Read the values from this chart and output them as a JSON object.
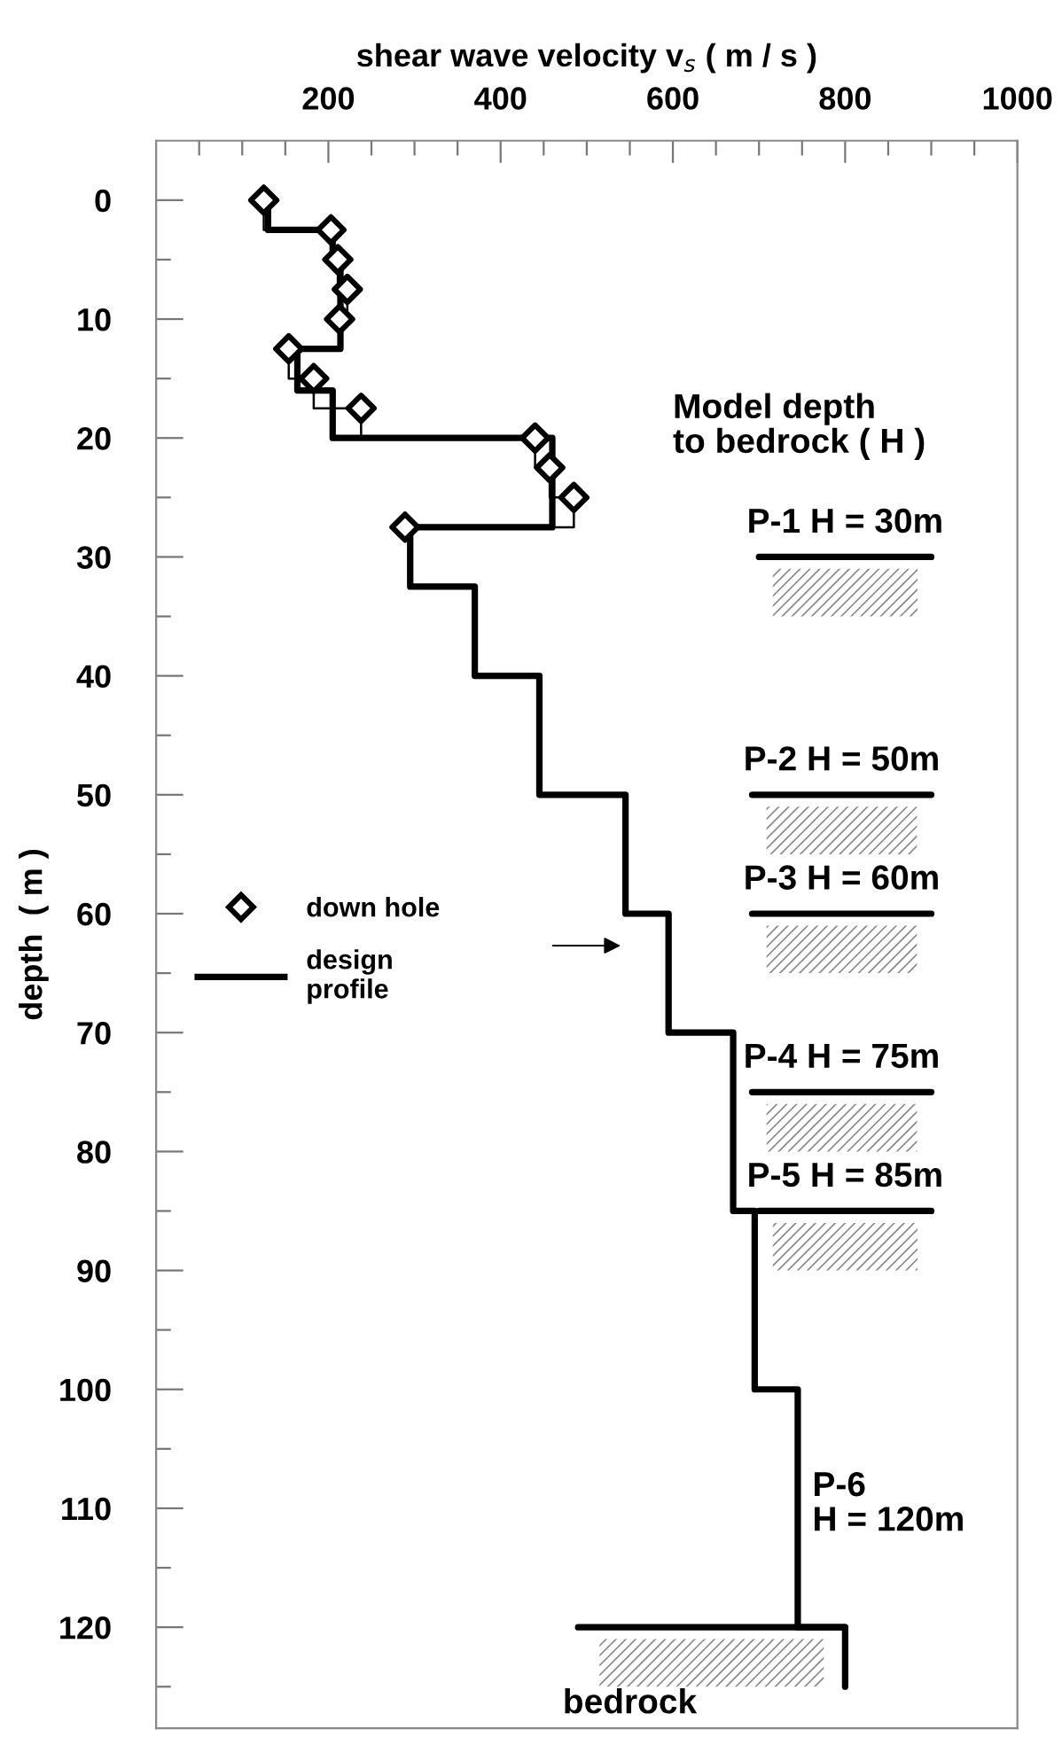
{
  "chart_data": {
    "type": "line",
    "xlabel": "shear wave velocity v$_{s}$ ( m / s )",
    "ylabel": "depth  ( m )",
    "xlim": [
      0,
      1000
    ],
    "xticks": [
      {
        "value": 50,
        "label": null
      },
      {
        "value": 100,
        "label": null
      },
      {
        "value": 150,
        "label": null
      },
      200,
      {
        "value": 250,
        "label": null
      },
      {
        "value": 300,
        "label": null
      },
      {
        "value": 350,
        "label": null
      },
      400,
      {
        "value": 450,
        "label": null
      },
      {
        "value": 500,
        "label": null
      },
      {
        "value": 550,
        "label": null
      },
      600,
      {
        "value": 650,
        "label": null
      },
      {
        "value": 700,
        "label": null
      },
      {
        "value": 750,
        "label": null
      },
      800,
      {
        "value": 850,
        "label": null
      },
      {
        "value": 900,
        "label": null
      },
      {
        "value": 950,
        "label": null
      },
      1000
    ],
    "ylim": [
      128.5,
      -5
    ],
    "yticks": [
      0,
      {
        "value": 5,
        "label": null
      },
      10,
      {
        "value": 15,
        "label": null
      },
      20,
      {
        "value": 25,
        "label": null
      },
      30,
      {
        "value": 35,
        "label": null
      },
      40,
      {
        "value": 45,
        "label": null
      },
      50,
      {
        "value": 55,
        "label": null
      },
      60,
      {
        "value": 65,
        "label": null
      },
      70,
      {
        "value": 75,
        "label": null
      },
      80,
      {
        "value": 85,
        "label": null
      },
      90,
      {
        "value": 95,
        "label": null
      },
      100,
      {
        "value": 105,
        "label": null
      },
      110,
      {
        "value": 115,
        "label": null
      },
      120,
      {
        "value": 125,
        "label": null
      }
    ],
    "grid": false,
    "legend": "left",
    "series": [
      {
        "name": "design\nprofile",
        "color": "#000000",
        "x": [
          130,
          130,
          205,
          205,
          214,
          214,
          164,
          164,
          205,
          205,
          460,
          460,
          295,
          295,
          370,
          370,
          445,
          445,
          545,
          545,
          595,
          595,
          670,
          670,
          695,
          695,
          745,
          745,
          800,
          800
        ],
        "values": [
          0,
          2.5,
          2.5,
          5,
          5,
          12.5,
          12.5,
          16,
          16,
          20,
          20,
          27.5,
          27.5,
          32.5,
          32.5,
          40,
          40,
          50,
          50,
          60,
          60,
          70,
          70,
          85,
          85,
          100,
          100,
          120,
          120,
          125
        ]
      },
      {
        "color": "#000000",
        "x": [
          125,
          125,
          203,
          203,
          211,
          211,
          222,
          222,
          213,
          213,
          154,
          154,
          183,
          183,
          238,
          238,
          440,
          440,
          457,
          457,
          485,
          485,
          460
        ],
        "values": [
          0,
          2.5,
          2.5,
          5,
          5,
          7.5,
          7.5,
          10,
          10,
          12.5,
          12.5,
          15,
          15,
          17.5,
          17.5,
          20,
          20,
          22.5,
          22.5,
          25,
          25,
          27.5,
          27.5
        ]
      },
      {
        "name": "down hole",
        "type": "scatter",
        "marker": "diamond",
        "color": "#000000",
        "x": [
          125,
          203,
          211,
          222,
          213,
          154,
          183,
          238,
          440,
          457,
          485,
          289
        ],
        "values": [
          0,
          2.5,
          5,
          7.5,
          10,
          12.5,
          15,
          17.5,
          20,
          22.5,
          25,
          27.5
        ]
      },
      {
        "color": "#000000",
        "x": [
          700,
          900
        ],
        "values": [
          30,
          30
        ]
      },
      {
        "color": "#000000",
        "x": [
          692,
          900
        ],
        "values": [
          50,
          50
        ]
      },
      {
        "color": "#000000",
        "x": [
          692,
          900
        ],
        "values": [
          60,
          60
        ]
      },
      {
        "color": "#000000",
        "x": [
          692,
          900
        ],
        "values": [
          75,
          75
        ]
      },
      {
        "color": "#000000",
        "x": [
          700,
          900
        ],
        "values": [
          85,
          85
        ]
      },
      {
        "color": "#000000",
        "x": [
          490,
          800
        ],
        "values": [
          120,
          120
        ]
      }
    ],
    "annotations": [
      "Model depth\nto bedrock ( H )",
      "P-1 H = 30m",
      "P-2 H = 50m",
      "P-3 H = 60m",
      "P-4 H = 75m",
      "P-5 H = 85m",
      "P-6\nH = 120m",
      "bedrock"
    ]
  }
}
